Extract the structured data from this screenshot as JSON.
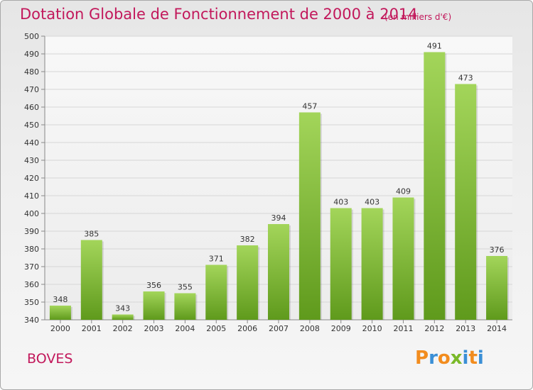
{
  "chart_data": {
    "type": "bar",
    "title": "Dotation Globale de Fonctionnement de 2000 à 2014",
    "subtitle": "(en milliers d'€)",
    "categories": [
      "2000",
      "2001",
      "2002",
      "2003",
      "2004",
      "2005",
      "2006",
      "2007",
      "2008",
      "2009",
      "2010",
      "2011",
      "2012",
      "2013",
      "2014"
    ],
    "values": [
      348,
      385,
      343,
      356,
      355,
      371,
      382,
      394,
      457,
      403,
      403,
      409,
      491,
      473,
      376
    ],
    "ylim": [
      340,
      500
    ],
    "ytick_step": 10,
    "grid": true,
    "bar_color": "#7ab929",
    "bar_color_light": "#a3d55a",
    "bar_color_dark": "#5f9a1c"
  },
  "commune": "BOVES",
  "logo": {
    "letters": [
      "P",
      "r",
      "o",
      "x",
      "i",
      "t",
      "i"
    ],
    "colors": [
      "#f28c1e",
      "#3a8fd6",
      "#f28c1e",
      "#7ab929",
      "#3a8fd6",
      "#f28c1e",
      "#3a8fd6"
    ]
  }
}
